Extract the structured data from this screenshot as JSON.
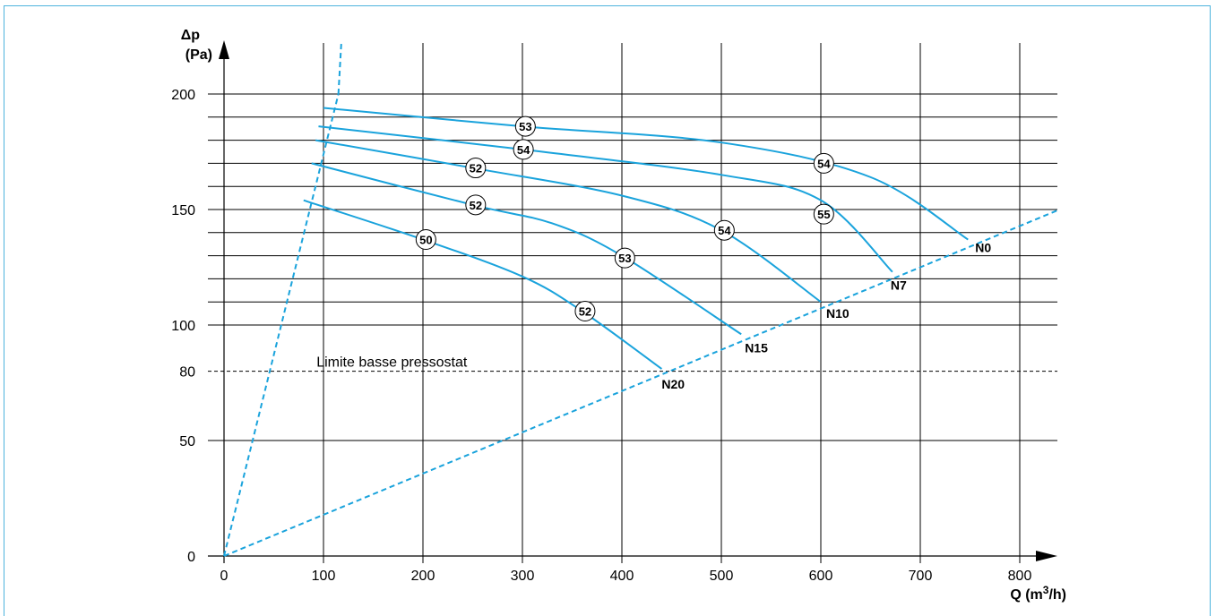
{
  "chart_data": {
    "type": "line",
    "y_axis_label": {
      "symbol": "Δp",
      "unit": "(Pa)"
    },
    "x_axis_label": {
      "text": "Q (m",
      "sup": "3",
      "tail": "/h)"
    },
    "x_ticks": [
      "0",
      "100",
      "200",
      "300",
      "400",
      "500",
      "600",
      "700",
      "800"
    ],
    "y_ticks": [
      {
        "value": 0,
        "label": "0"
      },
      {
        "value": 50,
        "label": "50"
      },
      {
        "value": 80,
        "label": "80"
      },
      {
        "value": 100,
        "label": "100"
      },
      {
        "value": 150,
        "label": "150"
      },
      {
        "value": 200,
        "label": "200"
      }
    ],
    "xlim": [
      0,
      840
    ],
    "ylim": [
      0,
      200
    ],
    "grid_y_values": [
      100,
      110,
      120,
      130,
      140,
      150,
      160,
      170,
      180,
      190,
      200
    ],
    "threshold": {
      "value": 80,
      "label": "Limite basse pressostat"
    },
    "series": [
      {
        "name": "N0",
        "points": [
          [
            100,
            194
          ],
          [
            300,
            186
          ],
          [
            500,
            179
          ],
          [
            650,
            164
          ],
          [
            748,
            137
          ]
        ]
      },
      {
        "name": "N7",
        "points": [
          [
            95,
            186
          ],
          [
            300,
            176
          ],
          [
            500,
            165
          ],
          [
            600,
            154
          ],
          [
            672,
            123
          ]
        ]
      },
      {
        "name": "N10",
        "points": [
          [
            92,
            180
          ],
          [
            250,
            168
          ],
          [
            400,
            156
          ],
          [
            500,
            141
          ],
          [
            600,
            110
          ]
        ]
      },
      {
        "name": "N15",
        "points": [
          [
            88,
            170
          ],
          [
            250,
            152
          ],
          [
            330,
            144
          ],
          [
            400,
            130
          ],
          [
            520,
            96
          ]
        ]
      },
      {
        "name": "N20",
        "points": [
          [
            80,
            154
          ],
          [
            200,
            137
          ],
          [
            300,
            121
          ],
          [
            360,
            106
          ],
          [
            440,
            81
          ]
        ]
      }
    ],
    "noise_labels": [
      {
        "text": "53",
        "x": 303,
        "y": 186
      },
      {
        "text": "54",
        "x": 301,
        "y": 176
      },
      {
        "text": "54",
        "x": 603,
        "y": 170
      },
      {
        "text": "52",
        "x": 253,
        "y": 168
      },
      {
        "text": "52",
        "x": 253,
        "y": 152
      },
      {
        "text": "55",
        "x": 603,
        "y": 148
      },
      {
        "text": "54",
        "x": 503,
        "y": 141
      },
      {
        "text": "50",
        "x": 203,
        "y": 137
      },
      {
        "text": "53",
        "x": 403,
        "y": 129
      },
      {
        "text": "52",
        "x": 363,
        "y": 106
      }
    ],
    "limit_lines": [
      {
        "from": [
          0,
          0
        ],
        "to": [
          115,
          200
        ]
      },
      {
        "from": [
          0,
          0
        ],
        "to": [
          840,
          150
        ]
      }
    ],
    "colors": {
      "curve": "#1aa3dc",
      "grid": "#000000"
    }
  }
}
